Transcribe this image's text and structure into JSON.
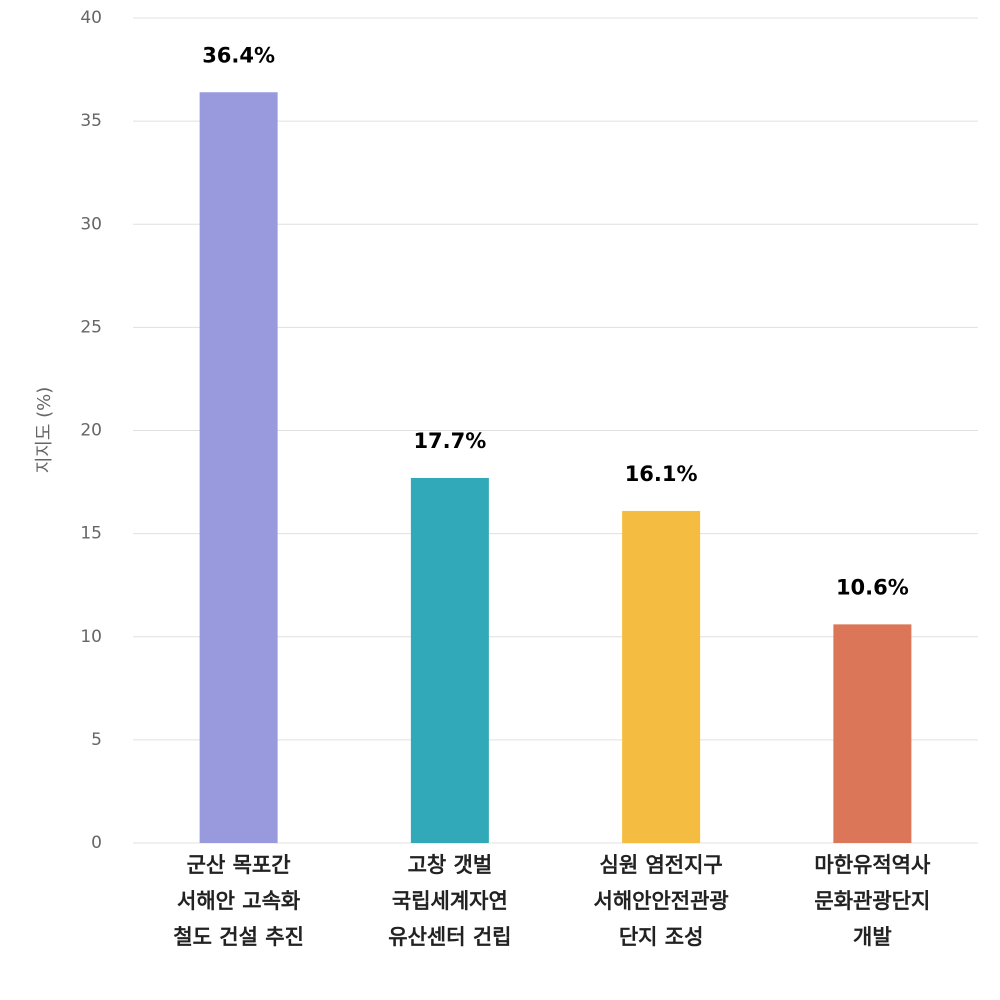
{
  "chart_data": {
    "type": "bar",
    "y_label": "지지도 (%)",
    "categories": [
      [
        "군산 목포간",
        "서해안 고속화",
        "철도 건설 추진"
      ],
      [
        "고창 갯벌",
        "국립세계자연",
        "유산센터 건립"
      ],
      [
        "심원 염전지구",
        "서해안안전관광",
        "단지 조성"
      ],
      [
        "마한유적역사",
        "문화관광단지",
        "개발"
      ]
    ],
    "values": [
      36.4,
      17.7,
      16.1,
      10.6
    ],
    "value_labels": [
      "36.4%",
      "17.7%",
      "16.1%",
      "10.6%"
    ],
    "colors": [
      "#9999dd",
      "#31a9b8",
      "#f4bd41",
      "#dc7658"
    ],
    "ylim": [
      0,
      40
    ],
    "yticks": [
      0,
      5,
      10,
      15,
      20,
      25,
      30,
      35,
      40
    ],
    "grid": true
  }
}
